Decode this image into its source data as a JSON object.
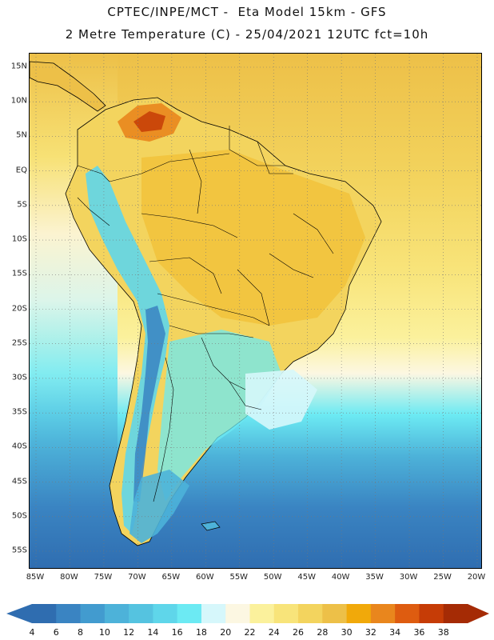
{
  "header": {
    "title_line_1": "CPTEC/INPE/MCT -  Eta Model 15km - GFS",
    "title_line_2": "2 Metre Temperature (C) - 25/04/2021 12UTC fct=10h"
  },
  "map": {
    "region": "South America",
    "lat_labels": [
      "15N",
      "10N",
      "5N",
      "EQ",
      "5S",
      "10S",
      "15S",
      "20S",
      "25S",
      "30S",
      "35S",
      "40S",
      "45S",
      "50S",
      "55S"
    ],
    "lon_labels": [
      "85W",
      "80W",
      "75W",
      "70W",
      "65W",
      "60W",
      "55W",
      "50W",
      "45W",
      "40W",
      "35W",
      "30W",
      "25W",
      "20W"
    ]
  },
  "legend": {
    "values": [
      "4",
      "6",
      "8",
      "10",
      "12",
      "14",
      "16",
      "18",
      "20",
      "22",
      "24",
      "26",
      "28",
      "30",
      "32",
      "34",
      "36",
      "38"
    ],
    "colors": [
      "#2f6db0",
      "#3a84c2",
      "#429bcf",
      "#4db2d9",
      "#55c3e0",
      "#5fd6ea",
      "#6ceaf3",
      "#d6f7fb",
      "#fcf7e2",
      "#fbf19c",
      "#f8e47a",
      "#f3d45e",
      "#edc048",
      "#f1a90a",
      "#e9861d",
      "#de5c10",
      "#c63c06",
      "#a52b05"
    ]
  }
}
